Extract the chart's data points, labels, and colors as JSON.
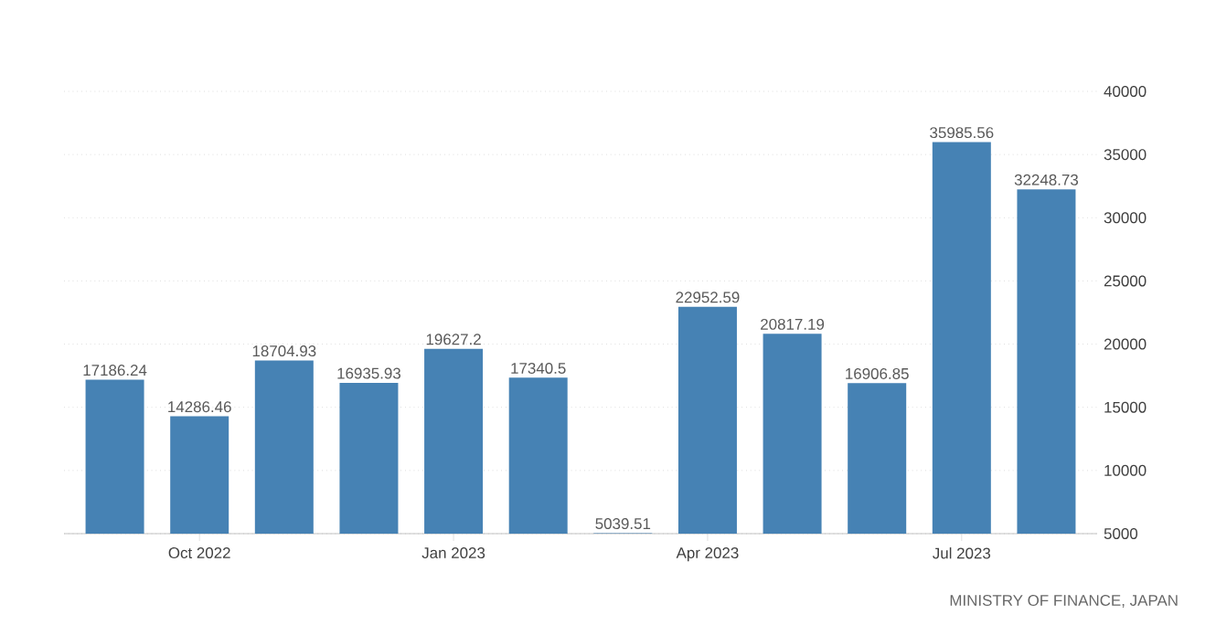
{
  "chart_data": {
    "type": "bar",
    "categories": [
      null,
      "Oct 2022",
      null,
      null,
      "Jan 2023",
      null,
      null,
      "Apr 2023",
      null,
      null,
      "Jul 2023",
      null
    ],
    "values": [
      17186.24,
      14286.46,
      18704.93,
      16935.93,
      19627.2,
      17340.5,
      5039.51,
      22952.59,
      20817.19,
      16906.85,
      35985.56,
      32248.73
    ],
    "color": "#4682b4",
    "ylim": [
      5000,
      40000
    ],
    "yticks": [
      5000,
      10000,
      15000,
      20000,
      25000,
      30000,
      35000,
      40000
    ],
    "grid": "y",
    "data_labels": true,
    "annotations": [
      "MINISTRY OF FINANCE, JAPAN"
    ]
  }
}
